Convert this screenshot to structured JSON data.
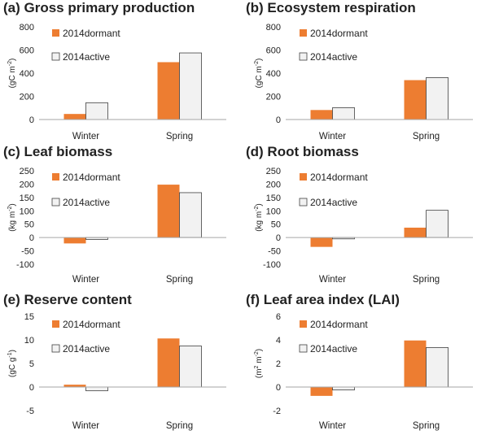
{
  "colors": {
    "dormant": "#ED7D31",
    "active": "#F2F2F2",
    "active_stroke": "#404040",
    "axis": "#A6A6A6"
  },
  "chart_data": [
    {
      "type": "bar",
      "title": "(a) Gross primary production",
      "ylabel": "(gC m⁻²)",
      "ylabel_main": "(gC m",
      "ylabel_exp": "-2",
      "ylabel_tail": ")",
      "categories": [
        "Winter",
        "Spring"
      ],
      "series": [
        {
          "name": "2014dormant",
          "values": [
            48,
            495
          ]
        },
        {
          "name": "2014active",
          "values": [
            145,
            575
          ]
        }
      ],
      "ylim": [
        0,
        800
      ],
      "yticks": [
        0,
        200,
        400,
        600,
        800
      ]
    },
    {
      "type": "bar",
      "title": "(b) Ecosystem respiration",
      "ylabel": "(gC m⁻²)",
      "ylabel_main": "(gC m",
      "ylabel_exp": "-2",
      "ylabel_tail": ")",
      "categories": [
        "Winter",
        "Spring"
      ],
      "series": [
        {
          "name": "2014dormant",
          "values": [
            82,
            340
          ]
        },
        {
          "name": "2014active",
          "values": [
            102,
            362
          ]
        }
      ],
      "ylim": [
        0,
        800
      ],
      "yticks": [
        0,
        200,
        400,
        600,
        800
      ]
    },
    {
      "type": "bar",
      "title": "(c) Leaf biomass",
      "ylabel": "(kg m⁻²)",
      "ylabel_main": "(kg m",
      "ylabel_exp": "-2",
      "ylabel_tail": ")",
      "categories": [
        "Winter",
        "Spring"
      ],
      "series": [
        {
          "name": "2014dormant",
          "values": [
            -22,
            198
          ]
        },
        {
          "name": "2014active",
          "values": [
            -7,
            168
          ]
        }
      ],
      "ylim": [
        -100,
        250
      ],
      "yticks": [
        -100,
        -50,
        0,
        50,
        100,
        150,
        200,
        250
      ]
    },
    {
      "type": "bar",
      "title": "(d) Root biomass",
      "ylabel": "(kg m⁻²)",
      "ylabel_main": "(kg m",
      "ylabel_exp": "-2",
      "ylabel_tail": ")",
      "categories": [
        "Winter",
        "Spring"
      ],
      "series": [
        {
          "name": "2014dormant",
          "values": [
            -35,
            37
          ]
        },
        {
          "name": "2014active",
          "values": [
            -5,
            102
          ]
        }
      ],
      "ylim": [
        -100,
        250
      ],
      "yticks": [
        -100,
        -50,
        0,
        50,
        100,
        150,
        200,
        250
      ]
    },
    {
      "type": "bar",
      "title": "(e) Reserve content",
      "ylabel": "(gC g⁻¹)",
      "ylabel_main": "(gC g",
      "ylabel_exp": "-1",
      "ylabel_tail": ")",
      "categories": [
        "Winter",
        "Spring"
      ],
      "series": [
        {
          "name": "2014dormant",
          "values": [
            0.5,
            10.3
          ]
        },
        {
          "name": "2014active",
          "values": [
            -0.8,
            8.7
          ]
        }
      ],
      "ylim": [
        -5,
        15
      ],
      "yticks": [
        -5,
        0,
        5,
        10,
        15
      ]
    },
    {
      "type": "bar",
      "title": "(f) Leaf area index (LAI)",
      "ylabel": "(m² m⁻²)",
      "ylabel_main": "(m",
      "ylabel_exp": "2",
      "ylabel_mid": " m",
      "ylabel_exp2": "-2",
      "ylabel_tail": ")",
      "categories": [
        "Winter",
        "Spring"
      ],
      "series": [
        {
          "name": "2014dormant",
          "values": [
            -0.75,
            3.95
          ]
        },
        {
          "name": "2014active",
          "values": [
            -0.25,
            3.35
          ]
        }
      ],
      "ylim": [
        -2,
        6
      ],
      "yticks": [
        -2,
        0,
        2,
        4,
        6
      ]
    }
  ]
}
